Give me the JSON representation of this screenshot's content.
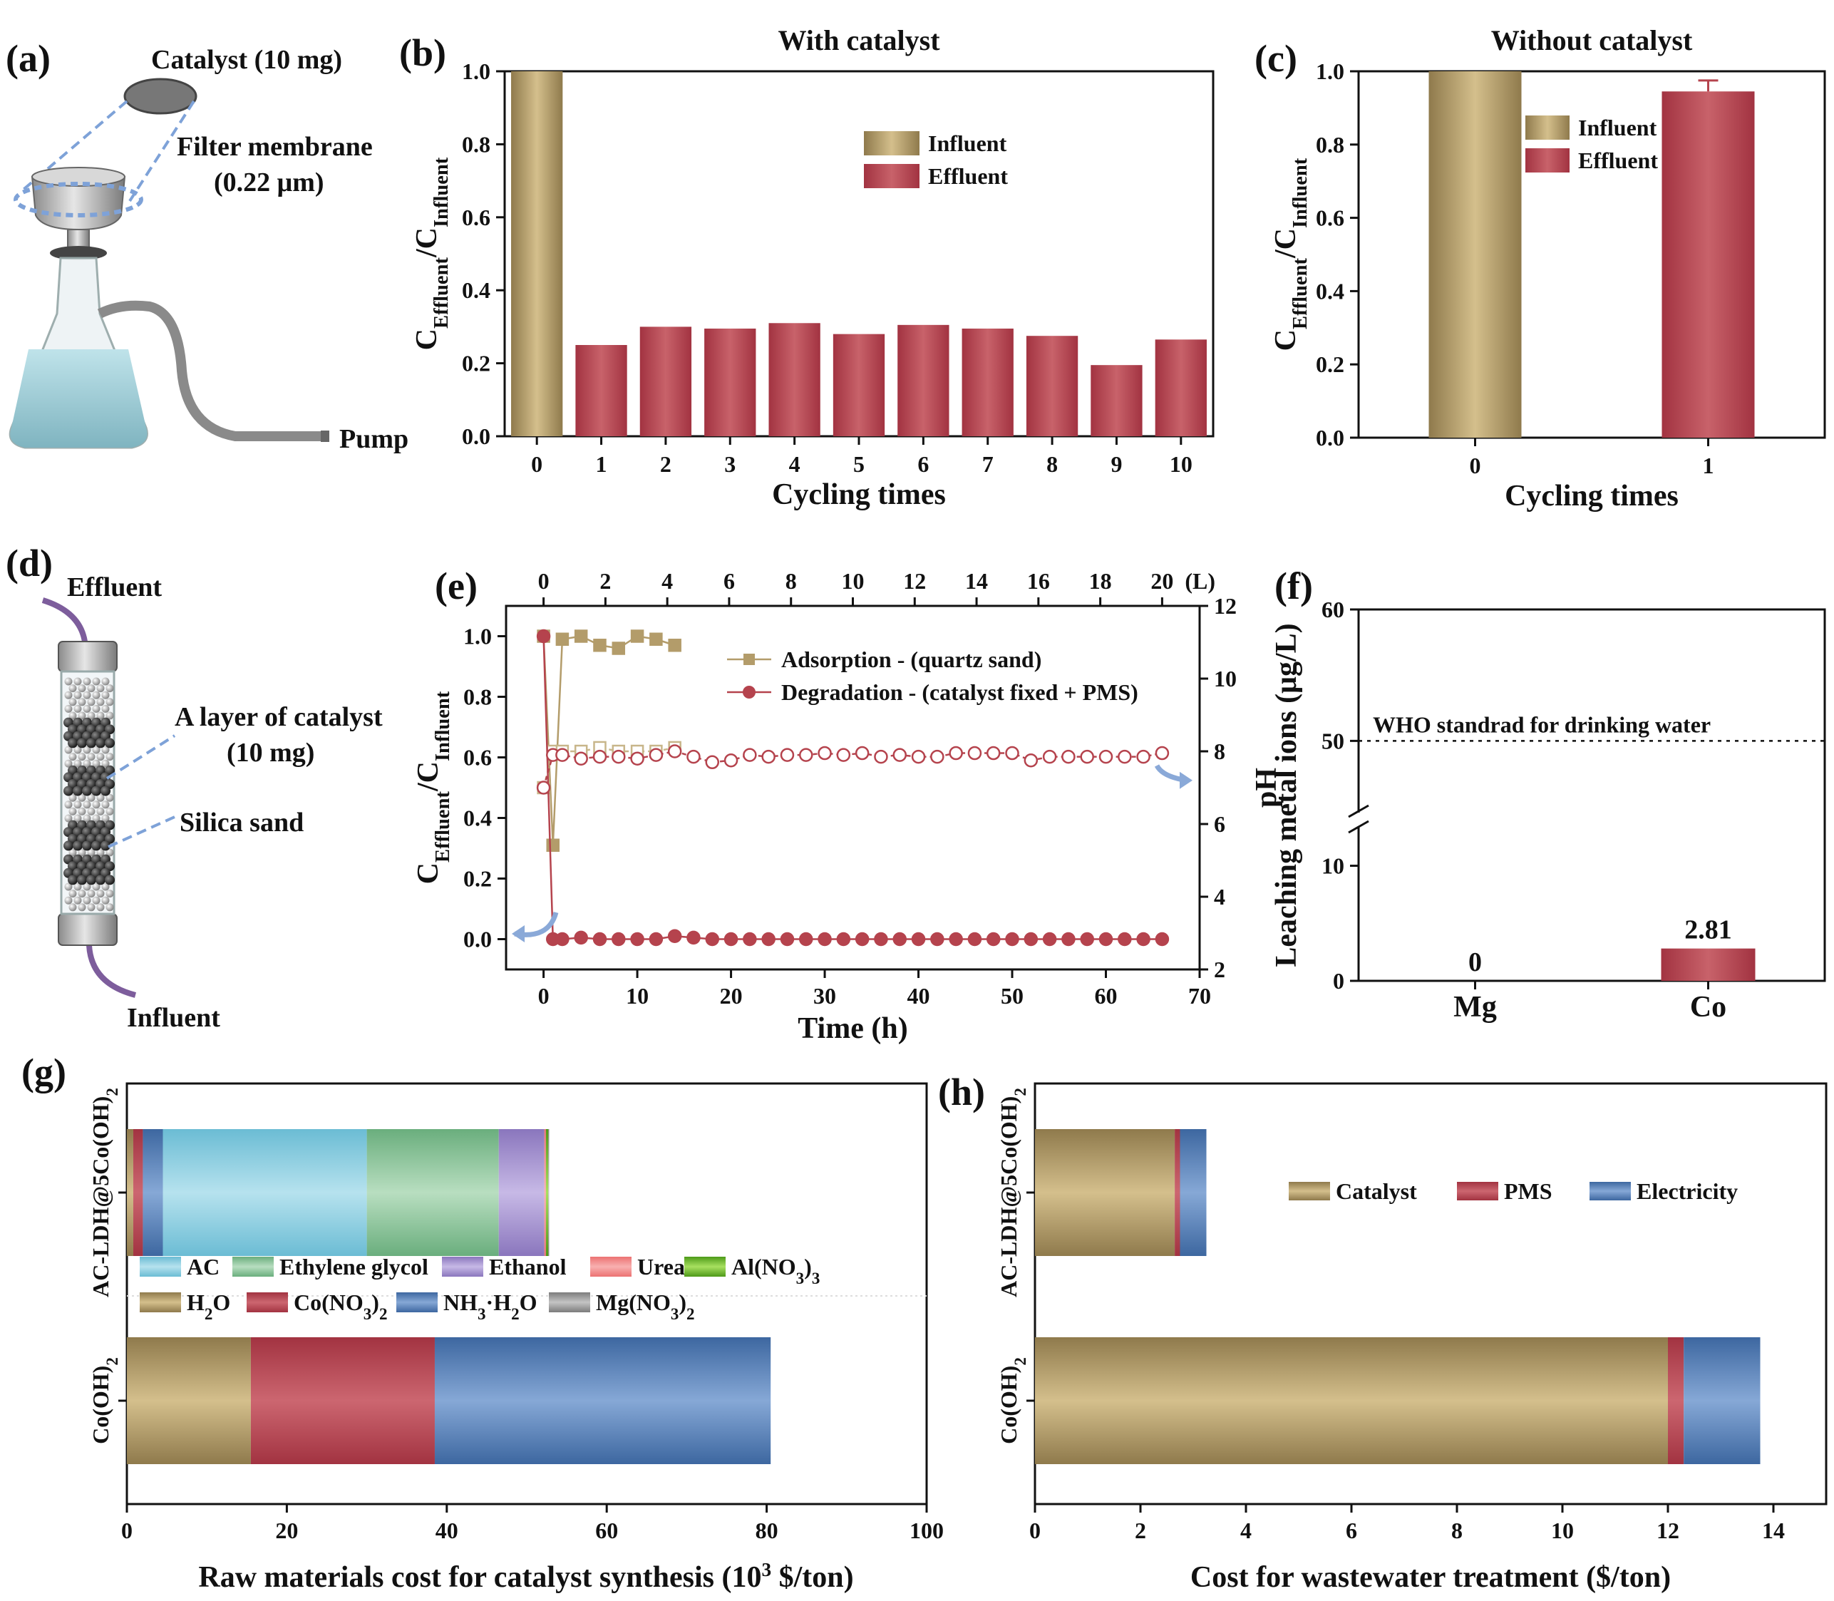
{
  "panels": {
    "a": "(a)",
    "b": "(b)",
    "c": "(c)",
    "d": "(d)",
    "e": "(e)",
    "f": "(f)",
    "g": "(g)",
    "h": "(h)"
  },
  "colors": {
    "gold": "#b39c6a",
    "red": "#b5434d",
    "blue": "#4f7cb0",
    "cyan": "#8ccde0",
    "green": "#8cc49a",
    "purple": "#a795cf",
    "pink": "#f08c8c",
    "lime": "#6fbf2a",
    "gray": "#9a9a9a",
    "arrow": "#8aa9d8",
    "dash": "#7ea2d8"
  },
  "icons": {
    "a": "filtration-flask-icon",
    "d": "packed-column-icon"
  },
  "panel_a": {
    "catalyst_label": "Catalyst (10 mg)",
    "membrane_label_1": "Filter membrane",
    "membrane_label_2": "(0.22 μm)",
    "pump_label": "Pump"
  },
  "panel_d": {
    "effluent_label": "Effluent",
    "layer_label_1": "A layer of catalyst",
    "layer_label_2": "(10 mg)",
    "sand_label": "Silica sand",
    "influent_label": "Influent"
  },
  "chart_data": [
    {
      "id": "b",
      "type": "bar",
      "title": "With catalyst",
      "xlabel": "Cycling times",
      "ylabel": "CEffluent/CInfluent",
      "categories": [
        "0",
        "1",
        "2",
        "3",
        "4",
        "5",
        "6",
        "7",
        "8",
        "9",
        "10"
      ],
      "values": [
        1.0,
        0.25,
        0.3,
        0.295,
        0.31,
        0.28,
        0.305,
        0.295,
        0.275,
        0.195,
        0.265
      ],
      "series_by_category": [
        "Influent",
        "Effluent",
        "Effluent",
        "Effluent",
        "Effluent",
        "Effluent",
        "Effluent",
        "Effluent",
        "Effluent",
        "Effluent",
        "Effluent"
      ],
      "legend": [
        "Influent",
        "Effluent"
      ],
      "legend_position": "top-right",
      "ylim": [
        0,
        1.0
      ],
      "yticks": [
        "0.0",
        "0.2",
        "0.4",
        "0.6",
        "0.8",
        "1.0"
      ]
    },
    {
      "id": "c",
      "type": "bar",
      "title": "Without catalyst",
      "xlabel": "Cycling times",
      "ylabel": "CEffluent/CInfluent",
      "categories": [
        "0",
        "1"
      ],
      "values": [
        1.0,
        0.945
      ],
      "error": [
        0,
        0.03
      ],
      "series_by_category": [
        "Influent",
        "Effluent"
      ],
      "legend": [
        "Influent",
        "Effluent"
      ],
      "legend_position": "top-center",
      "ylim": [
        0,
        1.0
      ],
      "yticks": [
        "0.0",
        "0.2",
        "0.4",
        "0.6",
        "0.8",
        "1.0"
      ]
    },
    {
      "id": "e",
      "type": "line",
      "xlabel": "Time (h)",
      "ylabel_left": "CEffluent/CInfluent",
      "ylabel_right": "pH",
      "xlim": [
        -4,
        70
      ],
      "ylim_left": [
        -0.1,
        1.1
      ],
      "ylim_right": [
        2,
        12
      ],
      "xticks": [
        "0",
        "10",
        "20",
        "30",
        "40",
        "50",
        "60",
        "70"
      ],
      "yticks_left": [
        "0.0",
        "0.2",
        "0.4",
        "0.6",
        "0.8",
        "1.0"
      ],
      "yticks_right": [
        "2",
        "4",
        "6",
        "8",
        "10",
        "12"
      ],
      "top_axis_unit": "(L)",
      "top_ticks": [
        "0",
        "2",
        "4",
        "6",
        "8",
        "10",
        "12",
        "14",
        "16",
        "18",
        "20"
      ],
      "legend_position": "top-right",
      "series": [
        {
          "name": "Adsorption - (quartz sand)",
          "axis": "left",
          "marker": "square-filled",
          "x": [
            0,
            1,
            2,
            4,
            6,
            8,
            10,
            12,
            14
          ],
          "y": [
            1.0,
            0.31,
            0.99,
            1.0,
            0.97,
            0.96,
            1.0,
            0.99,
            0.97
          ]
        },
        {
          "name": "Adsorption pH",
          "axis": "right",
          "marker": "square-open",
          "x": [
            0,
            1,
            2,
            4,
            6,
            8,
            10,
            12,
            14
          ],
          "y": [
            7.0,
            8.0,
            8.0,
            8.0,
            8.1,
            8.0,
            8.0,
            8.0,
            8.1
          ]
        },
        {
          "name": "Degradation - (catalyst fixed + PMS)",
          "axis": "left",
          "marker": "circle-filled",
          "x": [
            0,
            1,
            2,
            4,
            6,
            8,
            10,
            12,
            14,
            16,
            18,
            20,
            22,
            24,
            26,
            28,
            30,
            32,
            34,
            36,
            38,
            40,
            42,
            44,
            46,
            48,
            50,
            52,
            54,
            56,
            58,
            60,
            62,
            64,
            66
          ],
          "y": [
            1.0,
            0.0,
            0.0,
            0.005,
            0.0,
            0.0,
            0.0,
            0.0,
            0.01,
            0.005,
            0.0,
            0.0,
            0.0,
            0.0,
            0.0,
            0.0,
            0.0,
            0.0,
            0.0,
            0.0,
            0.0,
            0.0,
            0.0,
            0.0,
            0.0,
            0.0,
            0.0,
            0.0,
            0.0,
            0.0,
            0.0,
            0.0,
            0.0,
            0.0,
            0.0
          ]
        },
        {
          "name": "Degradation pH",
          "axis": "right",
          "marker": "circle-open",
          "x": [
            0,
            1,
            2,
            4,
            6,
            8,
            10,
            12,
            14,
            16,
            18,
            20,
            22,
            24,
            26,
            28,
            30,
            32,
            34,
            36,
            38,
            40,
            42,
            44,
            46,
            48,
            50,
            52,
            54,
            56,
            58,
            60,
            62,
            64,
            66
          ],
          "y": [
            7.0,
            7.9,
            7.9,
            7.8,
            7.85,
            7.85,
            7.8,
            7.9,
            8.0,
            7.85,
            7.7,
            7.75,
            7.9,
            7.85,
            7.9,
            7.9,
            7.95,
            7.9,
            7.95,
            7.85,
            7.9,
            7.85,
            7.85,
            7.95,
            7.95,
            7.95,
            7.95,
            7.75,
            7.85,
            7.85,
            7.85,
            7.85,
            7.85,
            7.85,
            7.95
          ]
        }
      ]
    },
    {
      "id": "f",
      "type": "bar",
      "xlabel": "",
      "ylabel": "Leaching metal ions (μg/L)",
      "categories": [
        "Mg",
        "Co"
      ],
      "values": [
        0,
        2.81
      ],
      "data_labels": [
        "0",
        "2.81"
      ],
      "reference_line": {
        "value": 50,
        "label": "WHO standrad for drinking water"
      },
      "axis_break": [
        14,
        44
      ],
      "yticks": [
        "0",
        "10",
        "50",
        "60"
      ]
    },
    {
      "id": "g",
      "type": "bar",
      "orientation": "horizontal-stacked",
      "xlabel": "Raw materials cost for catalyst synthesis (10",
      "xlabel_sup": "3",
      "xlabel_tail": " $/ton)",
      "xlim": [
        0,
        100
      ],
      "xticks": [
        "0",
        "20",
        "40",
        "60",
        "80",
        "100"
      ],
      "categories": [
        "AC-LDH@5Co(OH)2",
        "Co(OH)2"
      ],
      "series": [
        {
          "name": "H2O",
          "values": [
            0.8,
            15.5
          ]
        },
        {
          "name": "Co(NO3)2",
          "values": [
            1.2,
            23.0
          ]
        },
        {
          "name": "NH3·H2O",
          "values": [
            2.5,
            42.0
          ]
        },
        {
          "name": "AC",
          "values": [
            25.5,
            0
          ]
        },
        {
          "name": "Ethylene glycol",
          "values": [
            16.5,
            0
          ]
        },
        {
          "name": "Ethanol",
          "values": [
            5.7,
            0
          ]
        },
        {
          "name": "Urea",
          "values": [
            0.2,
            0
          ]
        },
        {
          "name": "Al(NO3)3",
          "values": [
            0.3,
            0
          ]
        },
        {
          "name": "Mg(NO3)2",
          "values": [
            0.1,
            0
          ]
        }
      ],
      "legend_position": "between-bars"
    },
    {
      "id": "h",
      "type": "bar",
      "orientation": "horizontal-stacked",
      "xlabel": "Cost for wastewater treatment ($/ton)",
      "xlim": [
        0,
        15
      ],
      "xticks": [
        "0",
        "2",
        "4",
        "6",
        "8",
        "10",
        "12",
        "14"
      ],
      "categories": [
        "AC-LDH@5Co(OH)2",
        "Co(OH)2"
      ],
      "series": [
        {
          "name": "Catalyst",
          "values": [
            2.65,
            12.0
          ]
        },
        {
          "name": "PMS",
          "values": [
            0.1,
            0.3
          ]
        },
        {
          "name": "Electricity",
          "values": [
            0.5,
            1.45
          ]
        }
      ],
      "legend": [
        "Catalyst",
        "PMS",
        "Electricity"
      ],
      "legend_position": "top-right"
    }
  ]
}
